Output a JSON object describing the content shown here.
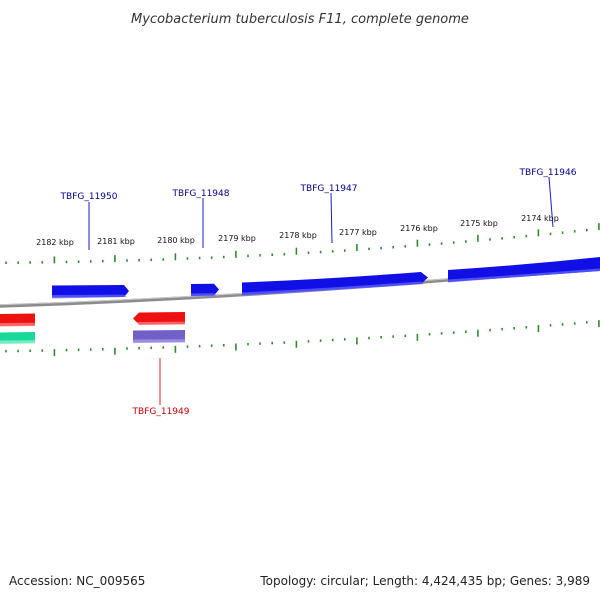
{
  "title": "Mycobacterium tuberculosis F11, complete genome",
  "footer": {
    "accession": "Accession: NC_009565",
    "summary": "Topology: circular; Length: 4,424,435 bp; Genes: 3,989"
  },
  "colors": {
    "forward_gene": "#1010e6",
    "reverse_gene": "#ee1111",
    "other_feature": "#7060c8",
    "teal_feature": "#18d99a",
    "tick": "#2e8b2e",
    "backbone": "#8c8c8c",
    "forward_label": "#00008b",
    "reverse_label": "#cc0000"
  },
  "scale_labels": [
    "2182 kbp",
    "2181 kbp",
    "2180 kbp",
    "2179 kbp",
    "2178 kbp",
    "2177 kbp",
    "2176 kbp",
    "2175 kbp",
    "2174 kbp"
  ],
  "gene_labels": {
    "forward": [
      "TBFG_11950",
      "TBFG_11948",
      "TBFG_11947",
      "TBFG_11946"
    ],
    "reverse": [
      "TBFG_11949"
    ]
  }
}
